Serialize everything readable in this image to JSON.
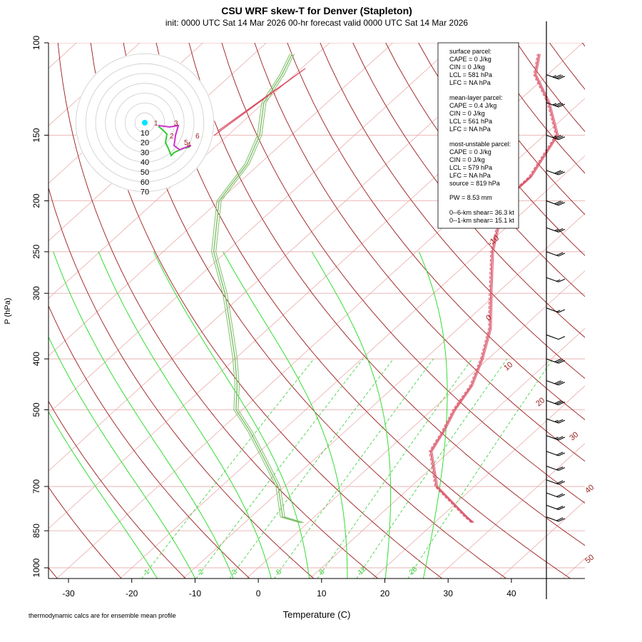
{
  "header": {
    "title": "CSU WRF skew-T for Denver (Stapleton)",
    "subtitle": "init: 0000 UTC Sat 14 Mar 2026     00-hr forecast valid 0000 UTC Sat 14 Mar 2026"
  },
  "footnote": "thermodynamic calcs are for ensemble mean profile",
  "params": {
    "surface_title": "surface parcel:",
    "surface_cape": "CAPE = 0 J/kg",
    "surface_cin": "CIN = 0 J/kg",
    "surface_lcl": "LCL = 581 hPa",
    "surface_lfc": "LFC = NA hPa",
    "mean_title": "mean-layer parcel:",
    "mean_cape": "CAPE = 0.4 J/kg",
    "mean_cin": "CIN = 0 J/kg",
    "mean_lcl": "LCL = 561 hPa",
    "mean_lfc": "LFC = NA hPa",
    "mu_title": "most-unstable parcel:",
    "mu_cape": "CAPE = 0 J/kg",
    "mu_cin": "CIN = 0 J/kg",
    "mu_lcl": "LCL = 579 hPa",
    "mu_lfc": "LFC = NA hPa",
    "mu_source": "source = 819 hPa",
    "pw": "PW =  8.53 mm",
    "shear6": "0--6-km shear= 36.3 kt",
    "shear1": "0--1-km shear= 15.1 kt"
  },
  "colors": {
    "isotherm": "#e8a0a0",
    "isobar": "#e8b0b0",
    "dry_adiabat": "#9b1b1b",
    "moist_adiabat": "#33dd33",
    "mixing_ratio": "#33cc33",
    "temperature": "#d94f64",
    "dewpoint": "#7fbf6a",
    "hodo_ring": "#cccccc",
    "hodo_low": "#33cc33",
    "hodo_high": "#cc33cc",
    "hodo_dot": "#00e5ff"
  },
  "chart_data": {
    "type": "skew-t",
    "xlabel": "Temperature (C)",
    "ylabel": "P (hPa)",
    "x_ticks": [
      -30,
      -20,
      -10,
      0,
      10,
      20,
      30,
      40
    ],
    "p_ticks": [
      100,
      150,
      200,
      250,
      300,
      400,
      500,
      700,
      850,
      1000
    ],
    "xlim": [
      -33,
      50
    ],
    "plim": [
      1050,
      100
    ],
    "isotherm_labels": [
      "-10",
      "0",
      "10",
      "20",
      "30",
      "40",
      "50"
    ],
    "mixing_ratio_labels": [
      "1",
      "2",
      "3",
      "5",
      "8",
      "12",
      "20"
    ],
    "temperature": [
      {
        "p": 820,
        "t": 26.0
      },
      {
        "p": 800,
        "t": 24.0
      },
      {
        "p": 700,
        "t": 14.0
      },
      {
        "p": 600,
        "t": 7.0
      },
      {
        "p": 550,
        "t": 5.5
      },
      {
        "p": 500,
        "t": 3.5
      },
      {
        "p": 450,
        "t": 2.0
      },
      {
        "p": 400,
        "t": -1.0
      },
      {
        "p": 350,
        "t": -5.0
      },
      {
        "p": 300,
        "t": -11.0
      },
      {
        "p": 250,
        "t": -18.0
      },
      {
        "p": 200,
        "t": -25.0
      },
      {
        "p": 180,
        "t": -25.0
      },
      {
        "p": 150,
        "t": -28.0
      },
      {
        "p": 130,
        "t": -35.0
      },
      {
        "p": 115,
        "t": -42.0
      },
      {
        "p": 105,
        "t": -45.0
      }
    ],
    "dewpoint": [
      {
        "p": 820,
        "t": -1.0
      },
      {
        "p": 800,
        "t": -5.0
      },
      {
        "p": 700,
        "t": -11.0
      },
      {
        "p": 620,
        "t": -18.0
      },
      {
        "p": 550,
        "t": -25.0
      },
      {
        "p": 500,
        "t": -31.0
      },
      {
        "p": 450,
        "t": -35.0
      },
      {
        "p": 400,
        "t": -40.0
      },
      {
        "p": 350,
        "t": -46.0
      },
      {
        "p": 300,
        "t": -53.0
      },
      {
        "p": 250,
        "t": -62.0
      },
      {
        "p": 200,
        "t": -70.0
      },
      {
        "p": 170,
        "t": -72.0
      },
      {
        "p": 150,
        "t": -75.0
      },
      {
        "p": 130,
        "t": -80.0
      },
      {
        "p": 115,
        "t": -82.0
      },
      {
        "p": 105,
        "t": -84.0
      }
    ],
    "hodograph": {
      "ring_labels": [
        "10",
        "20",
        "30",
        "40",
        "50",
        "60",
        "70"
      ],
      "point_labels": [
        "1",
        "2",
        "3",
        "4",
        "5",
        "6"
      ]
    },
    "wind_barbs": [
      {
        "p": 115,
        "dir": 290,
        "kt": 35
      },
      {
        "p": 130,
        "dir": 290,
        "kt": 35
      },
      {
        "p": 150,
        "dir": 290,
        "kt": 35
      },
      {
        "p": 175,
        "dir": 290,
        "kt": 30
      },
      {
        "p": 200,
        "dir": 290,
        "kt": 30
      },
      {
        "p": 225,
        "dir": 290,
        "kt": 25
      },
      {
        "p": 250,
        "dir": 290,
        "kt": 20
      },
      {
        "p": 280,
        "dir": 290,
        "kt": 15
      },
      {
        "p": 320,
        "dir": 290,
        "kt": 15
      },
      {
        "p": 360,
        "dir": 290,
        "kt": 10
      },
      {
        "p": 400,
        "dir": 290,
        "kt": 30
      },
      {
        "p": 440,
        "dir": 290,
        "kt": 30
      },
      {
        "p": 480,
        "dir": 290,
        "kt": 30
      },
      {
        "p": 520,
        "dir": 290,
        "kt": 25
      },
      {
        "p": 560,
        "dir": 290,
        "kt": 25
      },
      {
        "p": 600,
        "dir": 290,
        "kt": 20
      },
      {
        "p": 640,
        "dir": 290,
        "kt": 20
      },
      {
        "p": 680,
        "dir": 290,
        "kt": 20
      },
      {
        "p": 720,
        "dir": 290,
        "kt": 20
      },
      {
        "p": 760,
        "dir": 290,
        "kt": 20
      },
      {
        "p": 800,
        "dir": 290,
        "kt": 20
      }
    ]
  }
}
